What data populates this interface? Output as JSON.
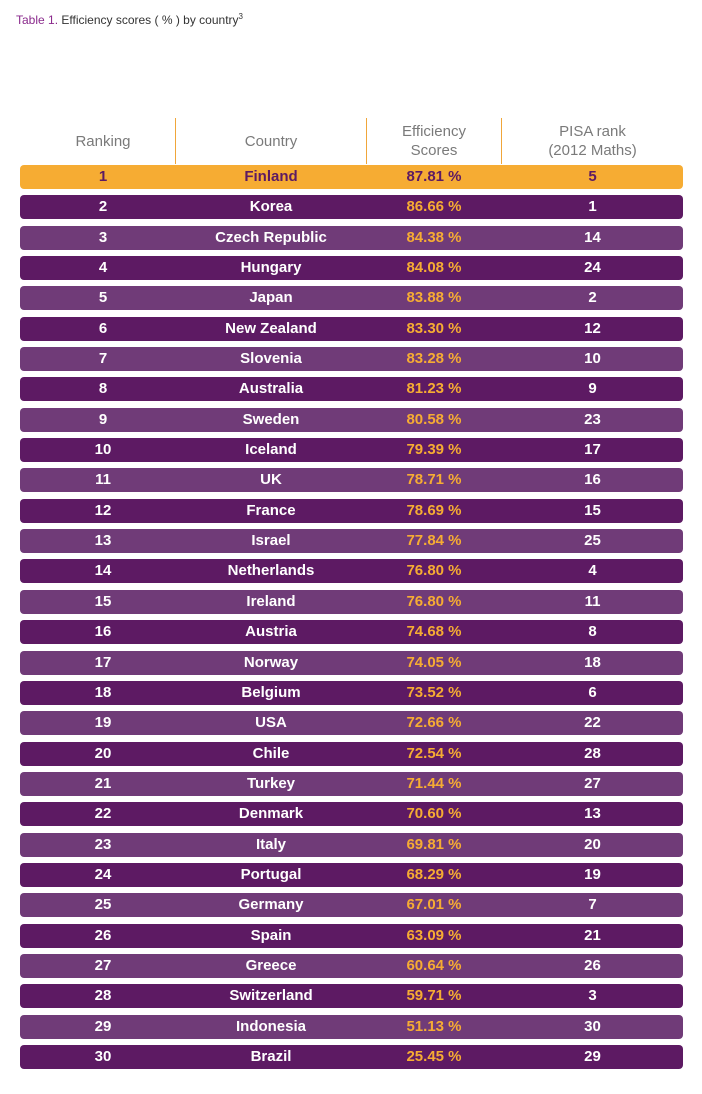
{
  "caption": {
    "label": "Table 1.",
    "text": " Efficiency scores ( % ) by country",
    "footnote": "3"
  },
  "columns": {
    "ranking": "Ranking",
    "country": "Country",
    "efficiency_line1": "Efficiency",
    "efficiency_line2": "Scores",
    "pisa_line1": "PISA rank",
    "pisa_line2": "(2012 Maths)"
  },
  "colors": {
    "dark_row": "#5d1a63",
    "light_row": "#703b78",
    "highlight": "#f6ac33"
  },
  "rows": [
    {
      "rank": "1",
      "country": "Finland",
      "score": "87.81 %",
      "pisa": "5"
    },
    {
      "rank": "2",
      "country": "Korea",
      "score": "86.66 %",
      "pisa": "1"
    },
    {
      "rank": "3",
      "country": "Czech Republic",
      "score": "84.38 %",
      "pisa": "14"
    },
    {
      "rank": "4",
      "country": "Hungary",
      "score": "84.08 %",
      "pisa": "24"
    },
    {
      "rank": "5",
      "country": "Japan",
      "score": "83.88 %",
      "pisa": "2"
    },
    {
      "rank": "6",
      "country": "New Zealand",
      "score": "83.30 %",
      "pisa": "12"
    },
    {
      "rank": "7",
      "country": "Slovenia",
      "score": "83.28 %",
      "pisa": "10"
    },
    {
      "rank": "8",
      "country": "Australia",
      "score": "81.23 %",
      "pisa": "9"
    },
    {
      "rank": "9",
      "country": "Sweden",
      "score": "80.58 %",
      "pisa": "23"
    },
    {
      "rank": "10",
      "country": "Iceland",
      "score": "79.39 %",
      "pisa": "17"
    },
    {
      "rank": "11",
      "country": "UK",
      "score": "78.71 %",
      "pisa": "16"
    },
    {
      "rank": "12",
      "country": "France",
      "score": "78.69 %",
      "pisa": "15"
    },
    {
      "rank": "13",
      "country": "Israel",
      "score": "77.84 %",
      "pisa": "25"
    },
    {
      "rank": "14",
      "country": "Netherlands",
      "score": "76.80 %",
      "pisa": "4"
    },
    {
      "rank": "15",
      "country": "Ireland",
      "score": "76.80 %",
      "pisa": "11"
    },
    {
      "rank": "16",
      "country": "Austria",
      "score": "74.68 %",
      "pisa": "8"
    },
    {
      "rank": "17",
      "country": "Norway",
      "score": "74.05 %",
      "pisa": "18"
    },
    {
      "rank": "18",
      "country": "Belgium",
      "score": "73.52 %",
      "pisa": "6"
    },
    {
      "rank": "19",
      "country": "USA",
      "score": "72.66 %",
      "pisa": "22"
    },
    {
      "rank": "20",
      "country": "Chile",
      "score": "72.54 %",
      "pisa": "28"
    },
    {
      "rank": "21",
      "country": "Turkey",
      "score": "71.44 %",
      "pisa": "27"
    },
    {
      "rank": "22",
      "country": "Denmark",
      "score": "70.60 %",
      "pisa": "13"
    },
    {
      "rank": "23",
      "country": "Italy",
      "score": "69.81 %",
      "pisa": "20"
    },
    {
      "rank": "24",
      "country": "Portugal",
      "score": "68.29 %",
      "pisa": "19"
    },
    {
      "rank": "25",
      "country": "Germany",
      "score": "67.01 %",
      "pisa": "7"
    },
    {
      "rank": "26",
      "country": "Spain",
      "score": "63.09 %",
      "pisa": "21"
    },
    {
      "rank": "27",
      "country": "Greece",
      "score": "60.64 %",
      "pisa": "26"
    },
    {
      "rank": "28",
      "country": "Switzerland",
      "score": "59.71 %",
      "pisa": "3"
    },
    {
      "rank": "29",
      "country": "Indonesia",
      "score": "51.13 %",
      "pisa": "30"
    },
    {
      "rank": "30",
      "country": "Brazil",
      "score": "25.45 %",
      "pisa": "29"
    }
  ]
}
